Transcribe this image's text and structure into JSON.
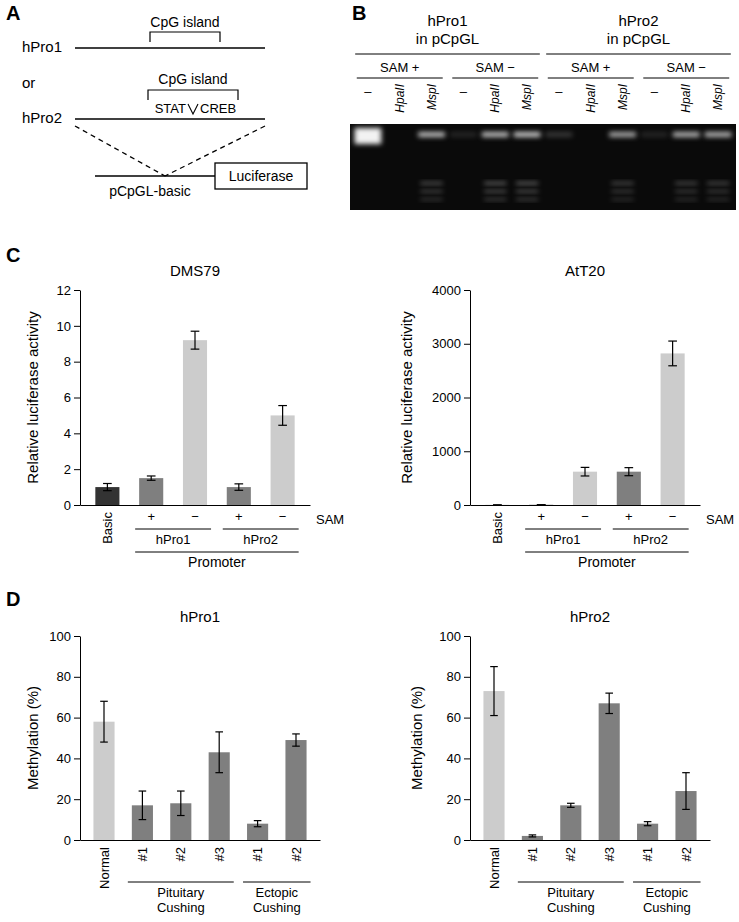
{
  "panel_labels": [
    "A",
    "B",
    "C",
    "D"
  ],
  "diagram": {
    "constructs": [
      {
        "name": "hPro1",
        "region": "CpG island"
      },
      {
        "name": "hPro2",
        "region": "CpG island",
        "sites": [
          "STAT",
          "CREB"
        ]
      }
    ],
    "connector": "or",
    "vector": "pCpGL-basic",
    "reporter": "Luciferase"
  },
  "gel": {
    "groups": [
      {
        "title": [
          "hPro1",
          "in pCpGL"
        ],
        "conditions": [
          {
            "label": "SAM +",
            "lanes": [
              "–",
              "HpaII",
              "MspI"
            ]
          },
          {
            "label": "SAM −",
            "lanes": [
              "–",
              "HpaII",
              "MspI"
            ]
          }
        ]
      },
      {
        "title": [
          "hPro2",
          "in pCpGL"
        ],
        "conditions": [
          {
            "label": "SAM +",
            "lanes": [
              "–",
              "HpaII",
              "MspI"
            ]
          },
          {
            "label": "SAM −",
            "lanes": [
              "–",
              "HpaII",
              "MspI"
            ]
          }
        ]
      }
    ]
  },
  "chart_data": [
    {
      "type": "bar",
      "title": "DMS79",
      "y_label": "Relative luciferase activity",
      "categories": [
        "Basic",
        "+",
        "−",
        "+",
        "−"
      ],
      "values": [
        1.0,
        1.5,
        9.2,
        1.0,
        5.0
      ],
      "errors": [
        0.2,
        0.12,
        0.5,
        0.18,
        0.55
      ],
      "colors": [
        "#333333",
        "#7f7f7f",
        "#cccccc",
        "#7f7f7f",
        "#cccccc"
      ],
      "ylim": [
        0,
        12
      ],
      "yticks": [
        0,
        2,
        4,
        6,
        8,
        10,
        12
      ],
      "row_label": "SAM",
      "groups": [
        null,
        "hPro1",
        "hPro1",
        "hPro2",
        "hPro2"
      ],
      "supergroup": "Promoter"
    },
    {
      "type": "bar",
      "title": "AtT20",
      "y_label": "Relative luciferase activity",
      "categories": [
        "Basic",
        "+",
        "−",
        "+",
        "−"
      ],
      "values": [
        1,
        5,
        620,
        620,
        2820
      ],
      "errors": [
        0,
        0,
        80,
        75,
        230
      ],
      "colors": [
        "#333333",
        "#7f7f7f",
        "#cccccc",
        "#7f7f7f",
        "#cccccc"
      ],
      "ylim": [
        0,
        4000
      ],
      "yticks": [
        0,
        1000,
        2000,
        3000,
        4000
      ],
      "row_label": "SAM",
      "groups": [
        null,
        "hPro1",
        "hPro1",
        "hPro2",
        "hPro2"
      ],
      "supergroup": "Promoter"
    },
    {
      "type": "bar",
      "title": "hPro1",
      "y_label": "Methylation (%)",
      "categories": [
        "Normal",
        "#1",
        "#2",
        "#3",
        "#1",
        "#2"
      ],
      "values": [
        58,
        17,
        18,
        43,
        8,
        49
      ],
      "errors": [
        10,
        7,
        6,
        10,
        1.5,
        3
      ],
      "colors": [
        "#cccccc",
        "#7f7f7f",
        "#7f7f7f",
        "#7f7f7f",
        "#7f7f7f",
        "#7f7f7f"
      ],
      "ylim": [
        0,
        100
      ],
      "yticks": [
        0,
        20,
        40,
        60,
        80,
        100
      ],
      "groups": [
        null,
        "Pituitary Cushing",
        "Pituitary Cushing",
        "Pituitary Cushing",
        "Ectopic Cushing",
        "Ectopic Cushing"
      ]
    },
    {
      "type": "bar",
      "title": "hPro2",
      "y_label": "Methylation (%)",
      "categories": [
        "Normal",
        "#1",
        "#2",
        "#3",
        "#1",
        "#2"
      ],
      "values": [
        73,
        2,
        17,
        67,
        8,
        24
      ],
      "errors": [
        12,
        0.5,
        1,
        5,
        1,
        9
      ],
      "colors": [
        "#cccccc",
        "#7f7f7f",
        "#7f7f7f",
        "#7f7f7f",
        "#7f7f7f",
        "#7f7f7f"
      ],
      "ylim": [
        0,
        100
      ],
      "yticks": [
        0,
        20,
        40,
        60,
        80,
        100
      ],
      "groups": [
        null,
        "Pituitary Cushing",
        "Pituitary Cushing",
        "Pituitary Cushing",
        "Ectopic Cushing",
        "Ectopic Cushing"
      ]
    }
  ]
}
